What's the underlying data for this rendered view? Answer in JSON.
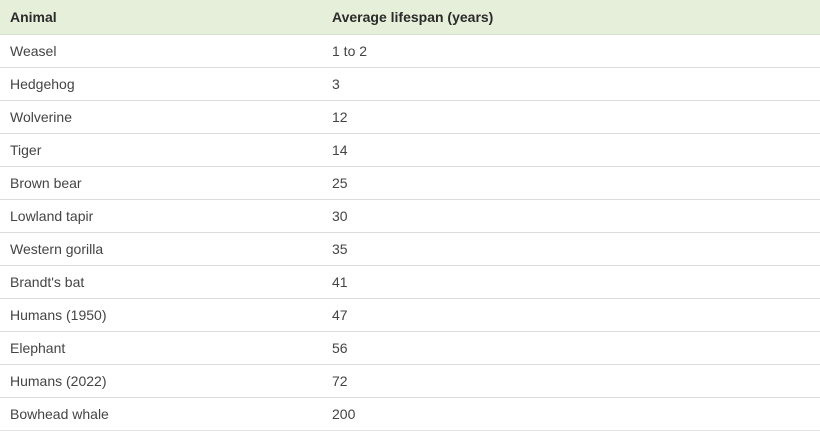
{
  "table": {
    "headers": [
      "Animal",
      "Average lifespan (years)"
    ],
    "rows": [
      [
        "Weasel",
        "1 to 2"
      ],
      [
        "Hedgehog",
        "3"
      ],
      [
        "Wolverine",
        "12"
      ],
      [
        "Tiger",
        "14"
      ],
      [
        "Brown bear",
        "25"
      ],
      [
        "Lowland tapir",
        "30"
      ],
      [
        "Western gorilla",
        "35"
      ],
      [
        "Brandt's bat",
        "41"
      ],
      [
        "Humans (1950)",
        "47"
      ],
      [
        "Elephant",
        "56"
      ],
      [
        "Humans (2022)",
        "72"
      ],
      [
        "Bowhead whale",
        "200"
      ]
    ]
  },
  "colors": {
    "header_background": "#e6efd9",
    "row_divider": "#dcdcdc",
    "text": "#444444"
  }
}
